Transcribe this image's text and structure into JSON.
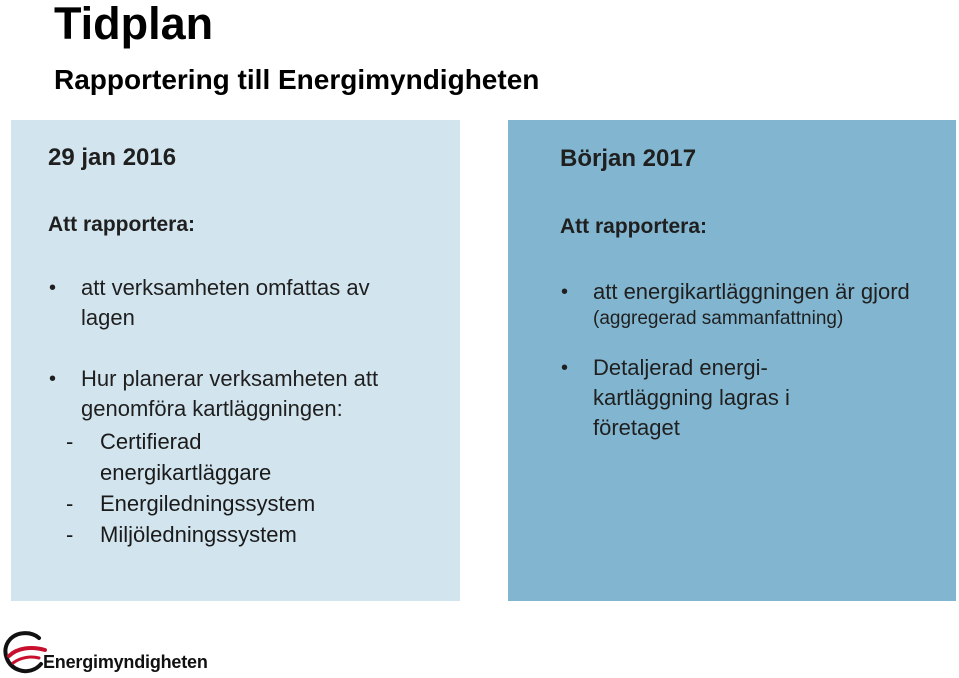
{
  "slide": {
    "title": "Tidplan",
    "subtitle": "Rapportering till Energimyndigheten"
  },
  "left_panel": {
    "heading": "29 jan 2016",
    "label": "Att rapportera:",
    "bullets": [
      {
        "text": "att verksamheten omfattas av lagen"
      },
      {
        "text": "Hur planerar verksamheten att genomföra kartläggningen:",
        "sub_items": [
          "Certifierad energikartläggare",
          "Energiledningssystem",
          "Miljöledningssystem"
        ]
      }
    ],
    "bullet_symbol": "•",
    "sub_symbol": "-"
  },
  "right_panel": {
    "heading": "Början 2017",
    "label": "Att rapportera:",
    "bullets": [
      {
        "text": "att energikartläggningen är gjord",
        "note": "(aggregerad sammanfattning)"
      },
      {
        "text": "Detaljerad energi-kartläggning lagras i företaget"
      }
    ],
    "bullet_symbol": "•"
  },
  "logo": {
    "name": "Energimyndigheten",
    "icon": "energimyndigheten-logo-mark",
    "color": "#c8102e"
  },
  "colors": {
    "left_panel_bg": "#d2e4ee",
    "right_panel_bg": "#82b6d0"
  }
}
